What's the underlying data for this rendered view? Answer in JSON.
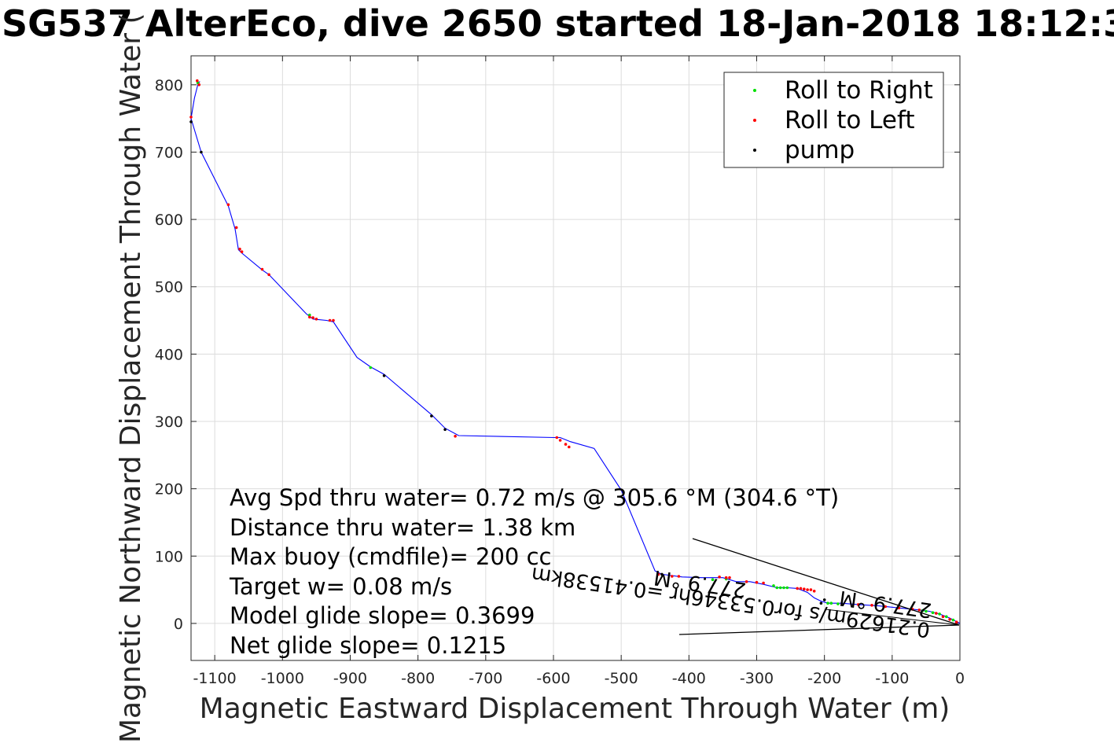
{
  "chart_data": {
    "type": "line",
    "title": "SG537 AlterEco, dive 2650 started 18-Jan-2018 18:12:3",
    "xlabel": "Magnetic Eastward Displacement Through Water (m)",
    "ylabel": "Magnetic Northward Displacement Through Water (",
    "xlim": [
      -1135,
      0
    ],
    "ylim": [
      -55,
      843
    ],
    "xticks": [
      -1100,
      -1000,
      -900,
      -800,
      -700,
      -600,
      -500,
      -400,
      -300,
      -200,
      -100,
      0
    ],
    "yticks": [
      0,
      100,
      200,
      300,
      400,
      500,
      600,
      700,
      800
    ],
    "grid": true,
    "legend_position": "top-right",
    "legend": [
      {
        "label": "Roll to Right",
        "color": "#00e000"
      },
      {
        "label": "Roll to Left",
        "color": "#ff0000"
      },
      {
        "label": "pump",
        "color": "#000000"
      }
    ],
    "track": {
      "color": "#0000ff",
      "x": [
        0,
        -15,
        -30,
        -45,
        -60,
        -80,
        -100,
        -120,
        -150,
        -175,
        -195,
        -205,
        -215,
        -225,
        -240,
        -255,
        -270,
        -290,
        -310,
        -330,
        -350,
        -380,
        -410,
        -440,
        -450,
        -500,
        -540,
        -575,
        -590,
        -598,
        -740,
        -760,
        -780,
        -850,
        -870,
        -890,
        -925,
        -935,
        -955,
        -965,
        -1020,
        -1030,
        -1060,
        -1065,
        -1070,
        -1080,
        -1120,
        -1135,
        -1130,
        -1125,
        -1122
      ],
      "y": [
        0,
        8,
        14,
        18,
        20,
        22,
        24,
        26,
        28,
        30,
        30,
        33,
        38,
        46,
        52,
        53,
        53,
        58,
        62,
        62,
        68,
        68,
        69,
        73,
        78,
        198,
        260,
        270,
        276,
        276,
        279,
        290,
        310,
        370,
        381,
        395,
        448,
        450,
        452,
        460,
        518,
        525,
        550,
        555,
        586,
        620,
        700,
        750,
        780,
        800,
        805
      ]
    },
    "roll_right": {
      "x": [
        -10,
        -20,
        -30,
        -40,
        -50,
        -55,
        -180,
        -190,
        -195,
        -255,
        -260,
        -265,
        -270,
        -275,
        -345,
        -365,
        -870,
        -960,
        -1125
      ],
      "y": [
        5,
        10,
        14,
        16,
        18,
        19,
        29,
        30,
        30,
        53,
        53,
        53,
        53,
        56,
        66,
        65,
        380,
        458,
        803
      ]
    },
    "roll_left": {
      "x": [
        -5,
        -15,
        -25,
        -35,
        -60,
        -70,
        -90,
        -110,
        -130,
        -150,
        -215,
        -220,
        -225,
        -230,
        -235,
        -240,
        -290,
        -300,
        -315,
        -340,
        -345,
        -355,
        -415,
        -425,
        -445,
        -577,
        -582,
        -590,
        -595,
        -745,
        -950,
        -955,
        -960,
        -925,
        -930,
        -1020,
        -1030,
        -1060,
        -1063,
        -1068,
        -1080,
        -1123,
        -1126,
        -1135
      ],
      "y": [
        2,
        6,
        10,
        15,
        20,
        21,
        23,
        25,
        27,
        28,
        48,
        50,
        50,
        51,
        52,
        52,
        60,
        61,
        62,
        68,
        68,
        69,
        70,
        70,
        73,
        262,
        266,
        272,
        276,
        278,
        452,
        454,
        455,
        450,
        450,
        518,
        526,
        552,
        556,
        588,
        622,
        800,
        806,
        752
      ]
    },
    "pump": {
      "x": [
        -200,
        -205,
        -440,
        -760,
        -780,
        -850,
        -1120,
        -1135
      ],
      "y": [
        35,
        30,
        73,
        288,
        308,
        368,
        700,
        745
      ]
    },
    "annotations": [
      "Avg Spd thru water=  0.72 m/s @ 305.6 °M (304.6 °T)",
      "Distance thru water=  1.38 km",
      "Max buoy (cmdfile)= 200 cc",
      "Target w= 0.08 m/s",
      "Model glide slope= 0.3699",
      "Net glide slope= 0.1215"
    ],
    "current_text_1": "0.21629m/s for0.53346hr =0.41538km",
    "current_text_2": "277.9 °M",
    "current_text_3": "277.9 °M"
  }
}
